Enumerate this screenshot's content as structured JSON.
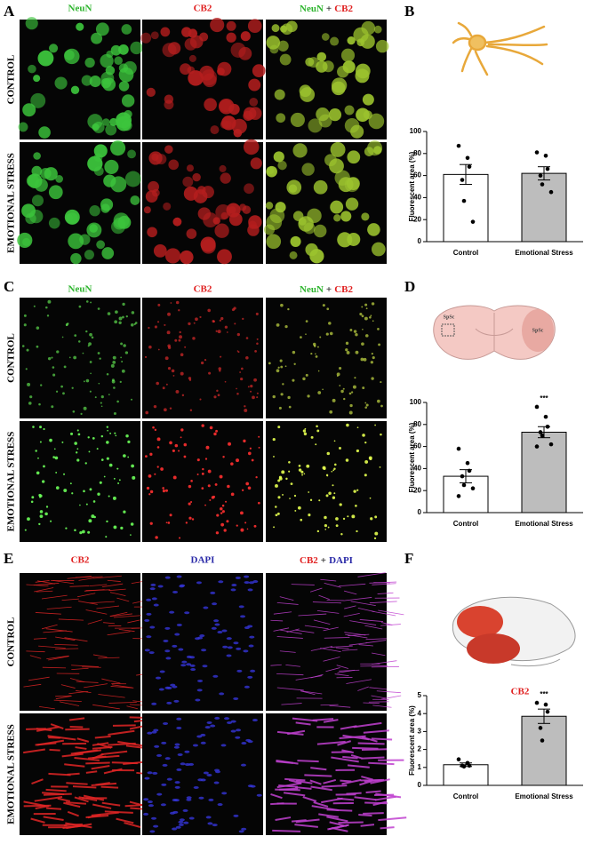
{
  "panels": {
    "letters": [
      "A",
      "B",
      "C",
      "D",
      "E",
      "F"
    ],
    "image_grids": [
      {
        "columns": [
          "NeuN",
          "CB2",
          [
            "NeuN",
            "+",
            "CB2"
          ]
        ],
        "rows": [
          "CONTROL",
          "EMOTIONAL STRESS"
        ]
      },
      {
        "columns": [
          "NeuN",
          "CB2",
          [
            "NeuN",
            "+",
            "CB2"
          ]
        ],
        "rows": [
          "CONTROL",
          "EMOTIONAL STRESS"
        ]
      },
      {
        "columns": [
          "CB2",
          "DAPI",
          [
            "CB2",
            "+",
            "DAPI"
          ]
        ],
        "rows": [
          "CONTROL",
          "EMOTIONAL STRESS"
        ]
      }
    ],
    "illustration_labels": [
      "SpSc",
      "SpSc"
    ]
  },
  "chart_data": [
    {
      "type": "bar",
      "ylabel": "Fluorescent area (%)",
      "categories": [
        "Control",
        "Emotional Stress"
      ],
      "values": [
        61,
        62
      ],
      "errors": [
        9,
        6
      ],
      "colors": [
        "#ffffff",
        "#bdbdbd"
      ],
      "points": [
        [
          87,
          76,
          68,
          56,
          37,
          18
        ],
        [
          81,
          78,
          66,
          60,
          52,
          45
        ]
      ],
      "ylim": [
        0,
        100
      ],
      "yticks": [
        0,
        20,
        40,
        60,
        80,
        100
      ]
    },
    {
      "type": "bar",
      "ylabel": "Fluorescent area (%)",
      "categories": [
        "Control",
        "Emotional Stress"
      ],
      "values": [
        33,
        73
      ],
      "errors": [
        6,
        5
      ],
      "colors": [
        "#ffffff",
        "#bdbdbd"
      ],
      "points": [
        [
          58,
          45,
          38,
          33,
          25,
          22,
          15
        ],
        [
          96,
          87,
          78,
          73,
          70,
          62,
          60
        ]
      ],
      "annotations": [
        null,
        "***"
      ],
      "ylim": [
        0,
        100
      ],
      "yticks": [
        0,
        20,
        40,
        60,
        80,
        100
      ]
    },
    {
      "type": "bar",
      "title": "CB2",
      "ylabel": "Fluorescent area (%)",
      "categories": [
        "Control",
        "Emotional Stress"
      ],
      "values": [
        1.15,
        3.85
      ],
      "errors": [
        0.1,
        0.4
      ],
      "colors": [
        "#ffffff",
        "#bdbdbd"
      ],
      "points": [
        [
          1.45,
          1.25,
          1.1,
          1.1,
          1.05
        ],
        [
          4.6,
          4.5,
          4.1,
          3.2,
          2.5
        ]
      ],
      "annotations": [
        null,
        "***"
      ],
      "ylim": [
        0,
        5
      ],
      "yticks": [
        0,
        1,
        2,
        3,
        4,
        5
      ]
    }
  ]
}
